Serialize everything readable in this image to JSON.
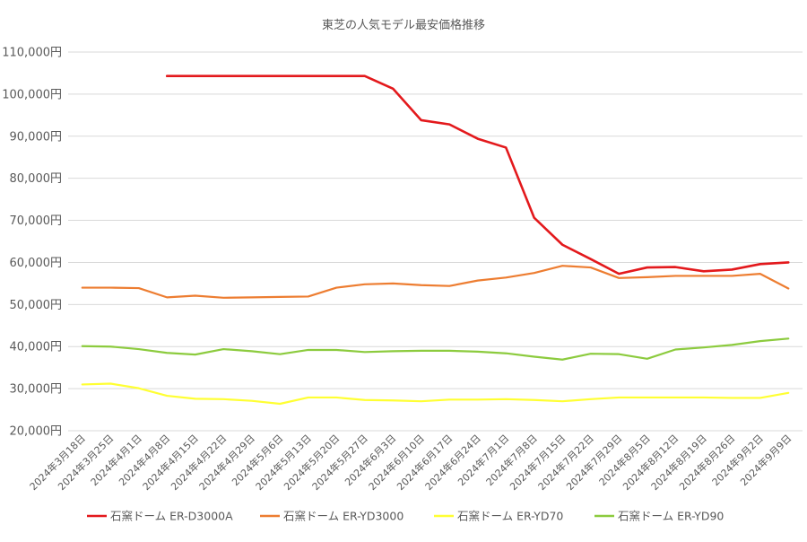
{
  "chart_data": {
    "type": "line",
    "title": "東芝の人気モデル最安価格推移",
    "xlabel": "",
    "ylabel": "",
    "ylim": [
      20000,
      110000
    ],
    "y_ticks": [
      20000,
      30000,
      40000,
      50000,
      60000,
      70000,
      80000,
      90000,
      100000,
      110000
    ],
    "y_tick_labels": [
      "20,000円",
      "30,000円",
      "40,000円",
      "50,000円",
      "60,000円",
      "70,000円",
      "80,000円",
      "90,000円",
      "100,000円",
      "110,000円"
    ],
    "grid": true,
    "legend_position": "bottom",
    "categories": [
      "2024年3月18日",
      "2024年3月25日",
      "2024年4月1日",
      "2024年4月8日",
      "2024年4月15日",
      "2024年4月22日",
      "2024年4月29日",
      "2024年5月6日",
      "2024年5月13日",
      "2024年5月20日",
      "2024年5月27日",
      "2024年6月3日",
      "2024年6月10日",
      "2024年6月17日",
      "2024年6月24日",
      "2024年7月1日",
      "2024年7月8日",
      "2024年7月15日",
      "2024年7月22日",
      "2024年7月29日",
      "2024年8月5日",
      "2024年8月12日",
      "2024年8月19日",
      "2024年8月26日",
      "2024年9月2日",
      "2024年9月9日"
    ],
    "series": [
      {
        "name": "石窯ドーム ER-D3000A",
        "color": "#e3191c",
        "values": [
          null,
          null,
          null,
          104300,
          104300,
          104300,
          104300,
          104300,
          104300,
          104300,
          104300,
          101300,
          93800,
          92800,
          89400,
          87300,
          70600,
          64200,
          60800,
          57300,
          58800,
          58900,
          57900,
          58300,
          59600,
          60000
        ]
      },
      {
        "name": "石窯ドーム ER-YD3000",
        "color": "#ed7d31",
        "values": [
          54000,
          54000,
          53900,
          51700,
          52100,
          51600,
          51700,
          51800,
          51900,
          54000,
          54800,
          55000,
          54600,
          54400,
          55700,
          56400,
          57500,
          59200,
          58800,
          56300,
          56500,
          56800,
          56800,
          56800,
          57300,
          53800
        ]
      },
      {
        "name": "石窯ドーム ER-YD70",
        "color": "#ffff33",
        "values": [
          31000,
          31200,
          30100,
          28300,
          27600,
          27500,
          27100,
          26400,
          27900,
          27900,
          27300,
          27200,
          27000,
          27400,
          27400,
          27500,
          27300,
          27000,
          27500,
          27900,
          27900,
          27900,
          27900,
          27800,
          27800,
          29000
        ]
      },
      {
        "name": "石窯ドーム ER-YD90",
        "color": "#8ccb3e",
        "values": [
          40100,
          40000,
          39400,
          38500,
          38100,
          39400,
          38900,
          38200,
          39200,
          39200,
          38700,
          38900,
          39000,
          39000,
          38800,
          38400,
          37600,
          36900,
          38300,
          38200,
          37100,
          39300,
          39800,
          40400,
          41300,
          41900
        ]
      }
    ]
  }
}
